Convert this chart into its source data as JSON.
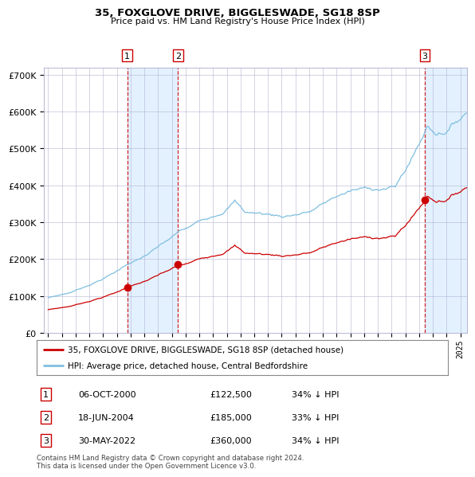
{
  "title": "35, FOXGLOVE DRIVE, BIGGLESWADE, SG18 8SP",
  "subtitle": "Price paid vs. HM Land Registry's House Price Index (HPI)",
  "legend_line1": "35, FOXGLOVE DRIVE, BIGGLESWADE, SG18 8SP (detached house)",
  "legend_line2": "HPI: Average price, detached house, Central Bedfordshire",
  "footer": "Contains HM Land Registry data © Crown copyright and database right 2024.\nThis data is licensed under the Open Government Licence v3.0.",
  "sale_labels": [
    {
      "n": "1",
      "date": "06-OCT-2000",
      "price": "£122,500",
      "pct": "34% ↓ HPI"
    },
    {
      "n": "2",
      "date": "18-JUN-2004",
      "price": "£185,000",
      "pct": "33% ↓ HPI"
    },
    {
      "n": "3",
      "date": "30-MAY-2022",
      "price": "£360,000",
      "pct": "34% ↓ HPI"
    }
  ],
  "sale_dates_num": [
    2000.75,
    2004.46,
    2022.41
  ],
  "sale_prices": [
    122500,
    185000,
    360000
  ],
  "hpi_color": "#7fbfdf",
  "price_color": "#cc0000",
  "dashed_color": "#cc0000",
  "shade_color": "#ddeeff",
  "bg_color": "#ffffff",
  "grid_color": "#aaaacc",
  "ylim": [
    0,
    720000
  ],
  "yticks": [
    0,
    100000,
    200000,
    300000,
    400000,
    500000,
    600000,
    700000
  ],
  "xlim_start": 1994.7,
  "xlim_end": 2025.5
}
